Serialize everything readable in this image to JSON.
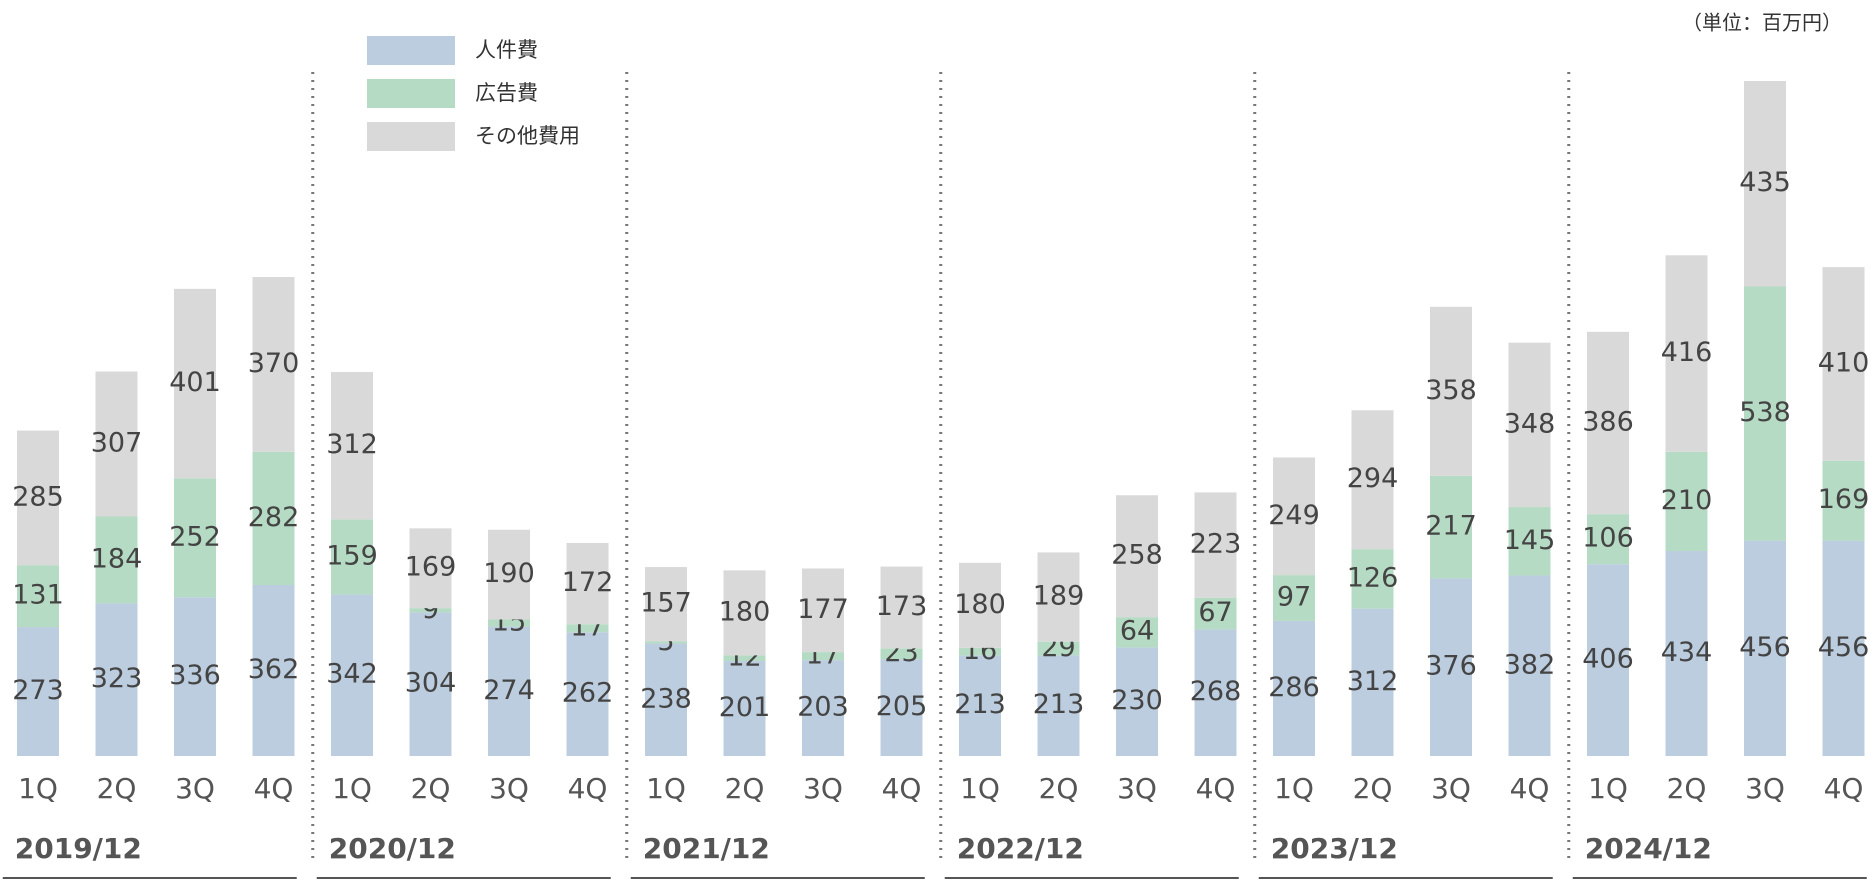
{
  "chart_data": {
    "type": "bar",
    "stacked": true,
    "note": "（単位：百万円）",
    "categories": [
      "1Q",
      "2Q",
      "3Q",
      "4Q",
      "1Q",
      "2Q",
      "3Q",
      "4Q",
      "1Q",
      "2Q",
      "3Q",
      "4Q",
      "1Q",
      "2Q",
      "3Q",
      "4Q",
      "1Q",
      "2Q",
      "3Q",
      "4Q",
      "1Q",
      "2Q",
      "3Q",
      "4Q"
    ],
    "groups": [
      "2019/12",
      "2020/12",
      "2021/12",
      "2022/12",
      "2023/12",
      "2024/12"
    ],
    "series": [
      {
        "name": "人件費",
        "color": "#bccddf",
        "values": [
          273,
          323,
          336,
          362,
          342,
          304,
          274,
          262,
          238,
          201,
          203,
          205,
          213,
          213,
          230,
          268,
          286,
          312,
          376,
          382,
          406,
          434,
          456,
          456
        ]
      },
      {
        "name": "広告費",
        "color": "#b6dbc4",
        "values": [
          131,
          184,
          252,
          282,
          159,
          9,
          15,
          17,
          5,
          12,
          17,
          23,
          16,
          29,
          64,
          67,
          97,
          126,
          217,
          145,
          106,
          210,
          538,
          169
        ]
      },
      {
        "name": "その他費用",
        "color": "#d9d9d9",
        "values": [
          285,
          307,
          401,
          370,
          312,
          169,
          190,
          172,
          157,
          180,
          177,
          173,
          180,
          189,
          258,
          223,
          249,
          294,
          358,
          348,
          386,
          416,
          435,
          410
        ]
      }
    ]
  }
}
